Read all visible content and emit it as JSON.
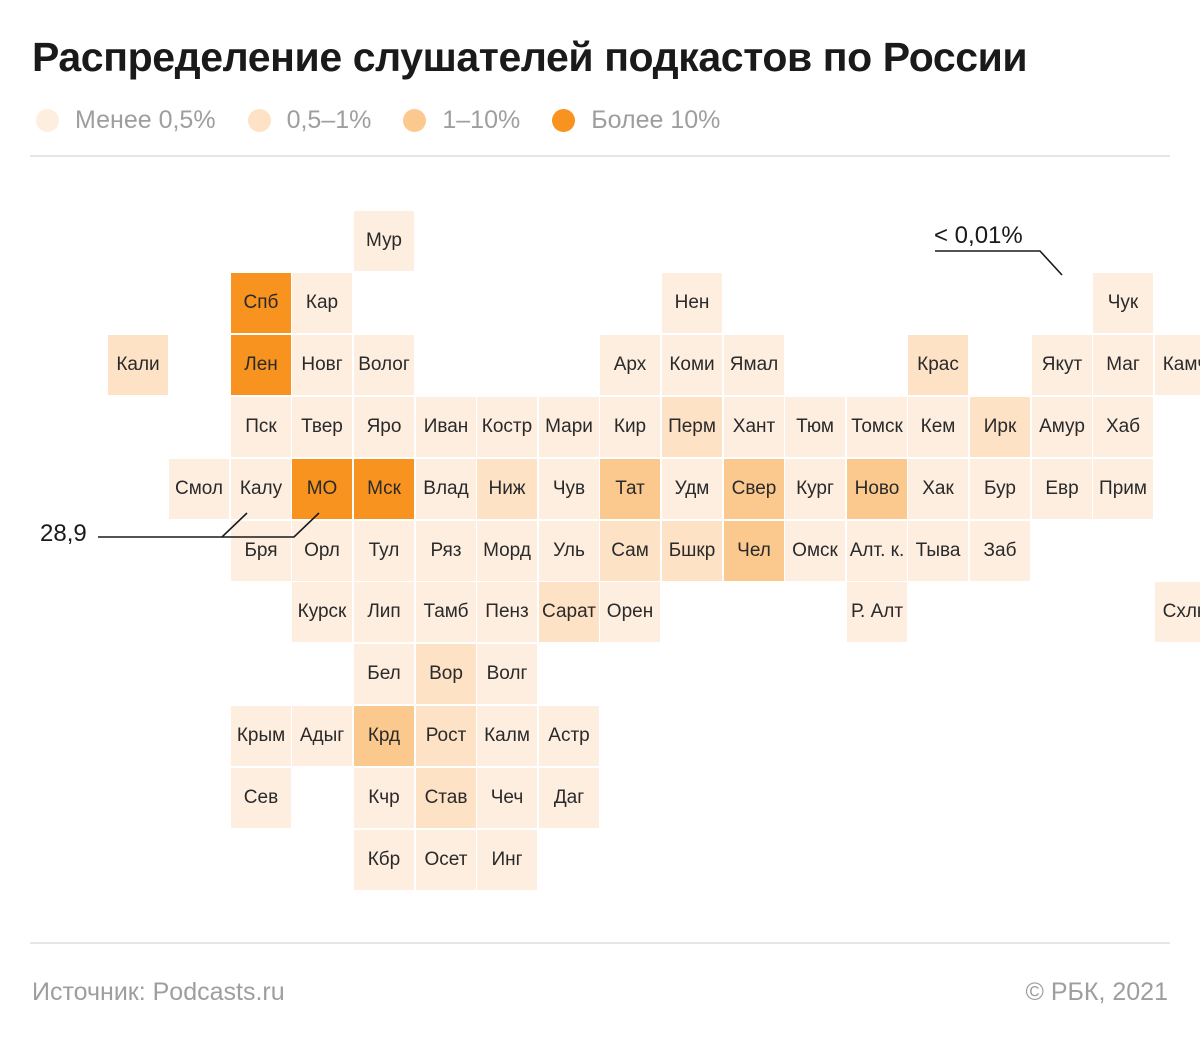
{
  "title": "Распределение слушателей подкастов по России",
  "legend": [
    {
      "label": "Менее 0,5%",
      "color": "#fdeee0"
    },
    {
      "label": "0,5–1%",
      "color": "#fde2c6"
    },
    {
      "label": "1–10%",
      "color": "#fbc98e"
    },
    {
      "label": "Более 10%",
      "color": "#f7931e"
    }
  ],
  "regions": [
    {
      "name": "Мур",
      "col": 5,
      "row": 0,
      "cat": 0
    },
    {
      "name": "Спб",
      "col": 3,
      "row": 1,
      "cat": 3
    },
    {
      "name": "Кар",
      "col": 4,
      "row": 1,
      "cat": 0
    },
    {
      "name": "Нен",
      "col": 10,
      "row": 1,
      "cat": 0
    },
    {
      "name": "Чук",
      "col": 17,
      "row": 1,
      "cat": 0
    },
    {
      "name": "Кали",
      "col": 1,
      "row": 2,
      "cat": 1
    },
    {
      "name": "Лен",
      "col": 3,
      "row": 2,
      "cat": 3
    },
    {
      "name": "Новг",
      "col": 4,
      "row": 2,
      "cat": 0
    },
    {
      "name": "Волог",
      "col": 5,
      "row": 2,
      "cat": 0
    },
    {
      "name": "Арх",
      "col": 9,
      "row": 2,
      "cat": 0
    },
    {
      "name": "Коми",
      "col": 10,
      "row": 2,
      "cat": 0
    },
    {
      "name": "Ямал",
      "col": 11,
      "row": 2,
      "cat": 0
    },
    {
      "name": "Крас",
      "col": 14,
      "row": 2,
      "cat": 1
    },
    {
      "name": "Якут",
      "col": 16,
      "row": 2,
      "cat": 0
    },
    {
      "name": "Маг",
      "col": 17,
      "row": 2,
      "cat": 0
    },
    {
      "name": "Камч",
      "col": 18,
      "row": 2,
      "cat": 0
    },
    {
      "name": "Пск",
      "col": 3,
      "row": 3,
      "cat": 0
    },
    {
      "name": "Твер",
      "col": 4,
      "row": 3,
      "cat": 0
    },
    {
      "name": "Яро",
      "col": 5,
      "row": 3,
      "cat": 0
    },
    {
      "name": "Иван",
      "col": 6,
      "row": 3,
      "cat": 0
    },
    {
      "name": "Костр",
      "col": 7,
      "row": 3,
      "cat": 0
    },
    {
      "name": "Мари",
      "col": 8,
      "row": 3,
      "cat": 0
    },
    {
      "name": "Кир",
      "col": 9,
      "row": 3,
      "cat": 0
    },
    {
      "name": "Перм",
      "col": 10,
      "row": 3,
      "cat": 1
    },
    {
      "name": "Хант",
      "col": 11,
      "row": 3,
      "cat": 0
    },
    {
      "name": "Тюм",
      "col": 12,
      "row": 3,
      "cat": 0
    },
    {
      "name": "Томск",
      "col": 13,
      "row": 3,
      "cat": 0
    },
    {
      "name": "Кем",
      "col": 14,
      "row": 3,
      "cat": 0
    },
    {
      "name": "Ирк",
      "col": 15,
      "row": 3,
      "cat": 1
    },
    {
      "name": "Амур",
      "col": 16,
      "row": 3,
      "cat": 0
    },
    {
      "name": "Хаб",
      "col": 17,
      "row": 3,
      "cat": 0
    },
    {
      "name": "Смол",
      "col": 2,
      "row": 4,
      "cat": 0
    },
    {
      "name": "Калу",
      "col": 3,
      "row": 4,
      "cat": 0
    },
    {
      "name": "МО",
      "col": 4,
      "row": 4,
      "cat": 3
    },
    {
      "name": "Мск",
      "col": 5,
      "row": 4,
      "cat": 3
    },
    {
      "name": "Влад",
      "col": 6,
      "row": 4,
      "cat": 0
    },
    {
      "name": "Ниж",
      "col": 7,
      "row": 4,
      "cat": 1
    },
    {
      "name": "Чув",
      "col": 8,
      "row": 4,
      "cat": 0
    },
    {
      "name": "Тат",
      "col": 9,
      "row": 4,
      "cat": 2
    },
    {
      "name": "Удм",
      "col": 10,
      "row": 4,
      "cat": 0
    },
    {
      "name": "Свер",
      "col": 11,
      "row": 4,
      "cat": 2
    },
    {
      "name": "Кург",
      "col": 12,
      "row": 4,
      "cat": 0
    },
    {
      "name": "Ново",
      "col": 13,
      "row": 4,
      "cat": 2
    },
    {
      "name": "Хак",
      "col": 14,
      "row": 4,
      "cat": 0
    },
    {
      "name": "Бур",
      "col": 15,
      "row": 4,
      "cat": 0
    },
    {
      "name": "Евр",
      "col": 16,
      "row": 4,
      "cat": 0
    },
    {
      "name": "Прим",
      "col": 17,
      "row": 4,
      "cat": 0
    },
    {
      "name": "Бря",
      "col": 3,
      "row": 5,
      "cat": 0
    },
    {
      "name": "Орл",
      "col": 4,
      "row": 5,
      "cat": 0
    },
    {
      "name": "Тул",
      "col": 5,
      "row": 5,
      "cat": 0
    },
    {
      "name": "Ряз",
      "col": 6,
      "row": 5,
      "cat": 0
    },
    {
      "name": "Морд",
      "col": 7,
      "row": 5,
      "cat": 0
    },
    {
      "name": "Уль",
      "col": 8,
      "row": 5,
      "cat": 0
    },
    {
      "name": "Сам",
      "col": 9,
      "row": 5,
      "cat": 1
    },
    {
      "name": "Бшкр",
      "col": 10,
      "row": 5,
      "cat": 1
    },
    {
      "name": "Чел",
      "col": 11,
      "row": 5,
      "cat": 2
    },
    {
      "name": "Омск",
      "col": 12,
      "row": 5,
      "cat": 0
    },
    {
      "name": "Алт. к.",
      "col": 13,
      "row": 5,
      "cat": 0
    },
    {
      "name": "Тыва",
      "col": 14,
      "row": 5,
      "cat": 0
    },
    {
      "name": "Заб",
      "col": 15,
      "row": 5,
      "cat": 0
    },
    {
      "name": "Курск",
      "col": 4,
      "row": 6,
      "cat": 0
    },
    {
      "name": "Лип",
      "col": 5,
      "row": 6,
      "cat": 0
    },
    {
      "name": "Тамб",
      "col": 6,
      "row": 6,
      "cat": 0
    },
    {
      "name": "Пенз",
      "col": 7,
      "row": 6,
      "cat": 0
    },
    {
      "name": "Сарат",
      "col": 8,
      "row": 6,
      "cat": 1
    },
    {
      "name": "Орен",
      "col": 9,
      "row": 6,
      "cat": 0
    },
    {
      "name": "Р. Алт",
      "col": 13,
      "row": 6,
      "cat": 0
    },
    {
      "name": "Схлн",
      "col": 18,
      "row": 6,
      "cat": 0
    },
    {
      "name": "Бел",
      "col": 5,
      "row": 7,
      "cat": 0
    },
    {
      "name": "Вор",
      "col": 6,
      "row": 7,
      "cat": 1
    },
    {
      "name": "Волг",
      "col": 7,
      "row": 7,
      "cat": 0
    },
    {
      "name": "Крым",
      "col": 3,
      "row": 8,
      "cat": 0
    },
    {
      "name": "Адыг",
      "col": 4,
      "row": 8,
      "cat": 0
    },
    {
      "name": "Крд",
      "col": 5,
      "row": 8,
      "cat": 2
    },
    {
      "name": "Рост",
      "col": 6,
      "row": 8,
      "cat": 1
    },
    {
      "name": "Калм",
      "col": 7,
      "row": 8,
      "cat": 0
    },
    {
      "name": "Астр",
      "col": 8,
      "row": 8,
      "cat": 0
    },
    {
      "name": "Сев",
      "col": 3,
      "row": 9,
      "cat": 0
    },
    {
      "name": "Кчр",
      "col": 5,
      "row": 9,
      "cat": 0
    },
    {
      "name": "Став",
      "col": 6,
      "row": 9,
      "cat": 1
    },
    {
      "name": "Чеч",
      "col": 7,
      "row": 9,
      "cat": 0
    },
    {
      "name": "Даг",
      "col": 8,
      "row": 9,
      "cat": 0
    },
    {
      "name": "Кбр",
      "col": 5,
      "row": 10,
      "cat": 0
    },
    {
      "name": "Осет",
      "col": 6,
      "row": 10,
      "cat": 0
    },
    {
      "name": "Инг",
      "col": 7,
      "row": 10,
      "cat": 0
    }
  ],
  "annotations": [
    {
      "text": "28,9"
    },
    {
      "text": "< 0,01%"
    }
  ],
  "footer": {
    "source": "Источник:  Podcasts.ru",
    "credit": "©  РБК, 2021"
  }
}
